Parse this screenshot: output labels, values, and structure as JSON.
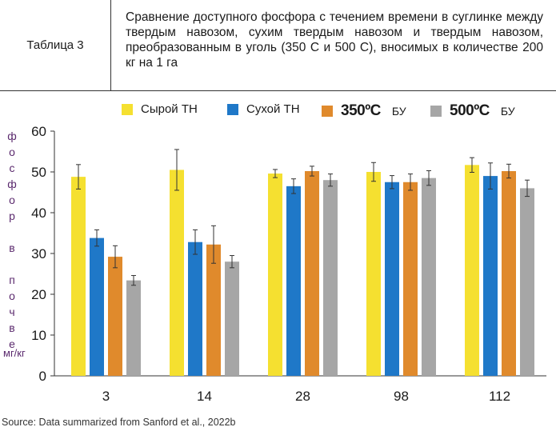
{
  "header": {
    "table_label": "Таблица 3",
    "description": "Сравнение доступного фосфора с течением времени в суглинке между твердым навозом, сухим твердым навозом и твердым навозом, преобразованным в уголь (350 С и 500 С), вносимых в количестве 200 кг на 1 га"
  },
  "legend": [
    {
      "label": "Сырой ТН",
      "suffix": "",
      "color": "#f5e030"
    },
    {
      "label": "Сухой ТН",
      "suffix": "",
      "color": "#1f78c8"
    },
    {
      "label": "350ºC",
      "suffix": "БУ",
      "color": "#e08a2c"
    },
    {
      "label": "500ºC",
      "suffix": "БУ",
      "color": "#a6a6a6"
    }
  ],
  "ylabel_letters": [
    "ф",
    "о",
    "с",
    "ф",
    "о",
    "р",
    "",
    "в",
    "",
    "п",
    "о",
    "ч",
    "в",
    "е"
  ],
  "yunit": "мг/кг",
  "source": "Source: Data summarized from Sanford et al., 2022b",
  "chart_data": {
    "type": "bar",
    "categories": [
      "3",
      "14",
      "28",
      "98",
      "112"
    ],
    "ylim": [
      0,
      60
    ],
    "yticks": [
      0,
      10,
      20,
      30,
      40,
      50,
      60
    ],
    "grid": false,
    "legend_position": "top",
    "series": [
      {
        "name": "Сырой ТН",
        "color": "#f5e030",
        "values": [
          48.8,
          50.5,
          49.6,
          50.0,
          51.7
        ],
        "errors": [
          3.0,
          5.0,
          1.0,
          2.3,
          1.8
        ]
      },
      {
        "name": "Сухой ТН",
        "color": "#1f78c8",
        "values": [
          33.8,
          32.8,
          46.5,
          47.5,
          49.0
        ],
        "errors": [
          2.0,
          3.0,
          1.8,
          1.6,
          3.2
        ]
      },
      {
        "name": "350ºC БУ",
        "color": "#e08a2c",
        "values": [
          29.2,
          32.2,
          50.2,
          47.5,
          50.2
        ],
        "errors": [
          2.7,
          4.6,
          1.2,
          2.0,
          1.7
        ]
      },
      {
        "name": "500ºC БУ",
        "color": "#a6a6a6",
        "values": [
          23.4,
          28.0,
          48.0,
          48.5,
          46.0
        ],
        "errors": [
          1.2,
          1.5,
          1.5,
          1.8,
          2.0
        ]
      }
    ]
  }
}
